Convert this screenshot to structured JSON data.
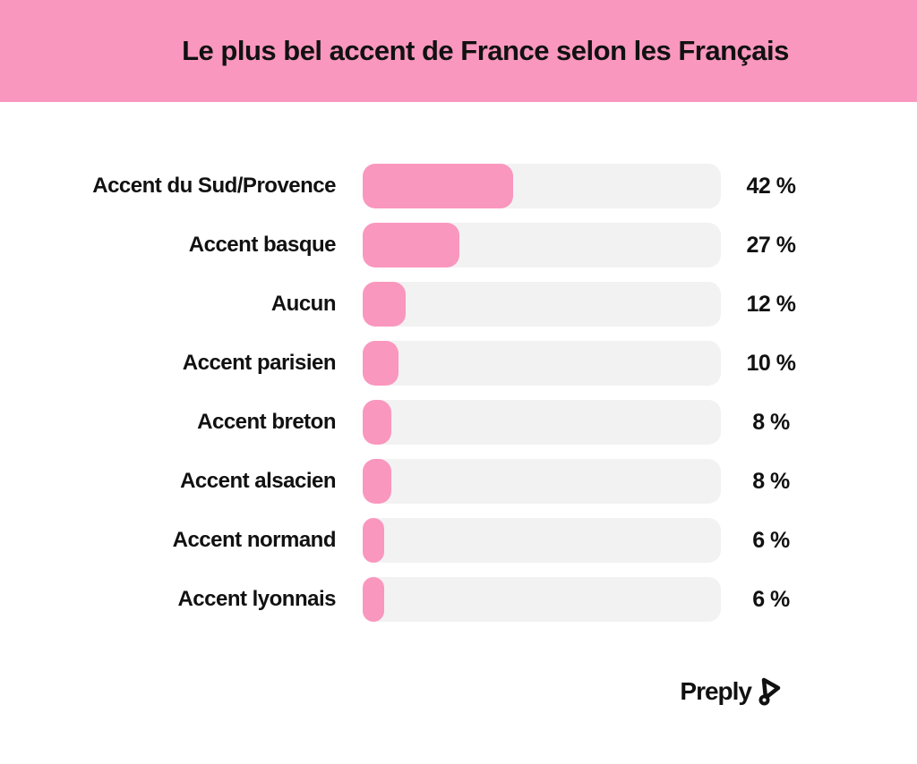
{
  "header": {
    "title": "Le plus bel accent de France selon les Français"
  },
  "chart_data": {
    "type": "bar",
    "orientation": "horizontal",
    "title": "Le plus bel accent de France selon les Français",
    "categories": [
      "Accent du Sud/Provence",
      "Accent basque",
      "Aucun",
      "Accent parisien",
      "Accent breton",
      "Accent alsacien",
      "Accent normand",
      "Accent lyonnais"
    ],
    "values": [
      42,
      27,
      12,
      10,
      8,
      8,
      6,
      6
    ],
    "value_labels": [
      "42 %",
      "27 %",
      "12 %",
      "10 %",
      "8 %",
      "8 %",
      "6 %",
      "6 %"
    ],
    "unit": "%",
    "xlim": [
      0,
      100
    ],
    "grid": false,
    "legend": "none"
  },
  "footer": {
    "brand": "Preply",
    "logo_icon": "preply-play-mark"
  },
  "colors": {
    "banner_pink": "#FA97BE",
    "bar_pink": "#FA97BE",
    "track_gray": "#F2F2F2",
    "text_black": "#111111",
    "background": "#FFFFFF"
  }
}
